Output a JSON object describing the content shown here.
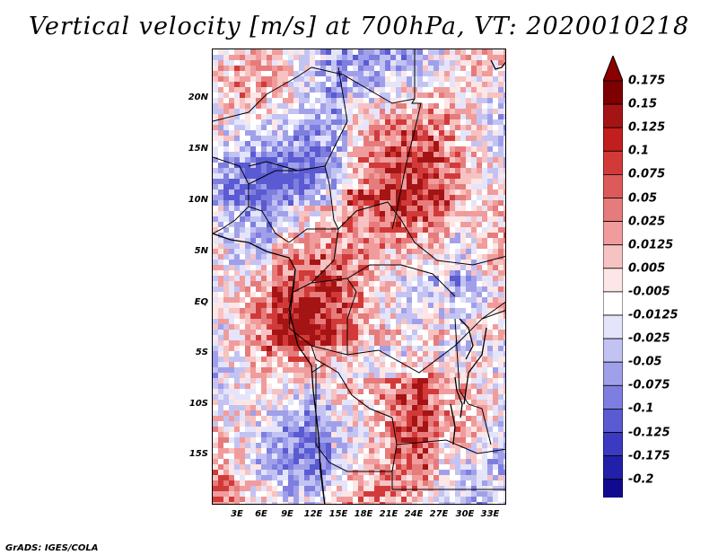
{
  "title": "Vertical velocity [m/s] at 700hPa, VT: 2020010218",
  "footer": "GrADS: IGES/COLA",
  "map": {
    "lat_labels": [
      "20N",
      "15N",
      "10N",
      "5N",
      "EQ",
      "5S",
      "10S",
      "15S"
    ],
    "lon_labels": [
      "3E",
      "6E",
      "9E",
      "12E",
      "15E",
      "18E",
      "21E",
      "24E",
      "27E",
      "30E",
      "33E"
    ],
    "lat_range": [
      -20,
      25
    ],
    "lon_range": [
      0,
      35
    ],
    "variable": "vertical velocity",
    "level": "700hPa"
  },
  "colorbar": {
    "labels": [
      "0.175",
      "0.15",
      "0.125",
      "0.1",
      "0.075",
      "0.05",
      "0.025",
      "0.0125",
      "0.005",
      "-0.005",
      "-0.0125",
      "-0.025",
      "-0.05",
      "-0.075",
      "-0.1",
      "-0.125",
      "-0.175",
      "-0.2"
    ],
    "colors": [
      "#7f0000",
      "#a51414",
      "#c21e1e",
      "#d23a3a",
      "#dd5a5a",
      "#e67b7b",
      "#f09c9c",
      "#f7c2c2",
      "#fde6e6",
      "#ffffff",
      "#e4e4fb",
      "#c3c3f3",
      "#a0a0ea",
      "#7e7ee0",
      "#5a5ad2",
      "#3a3ac2",
      "#2020aa",
      "#100a90"
    ],
    "top_color": "#8b0000",
    "bottom_color": "#1a0a8a"
  }
}
